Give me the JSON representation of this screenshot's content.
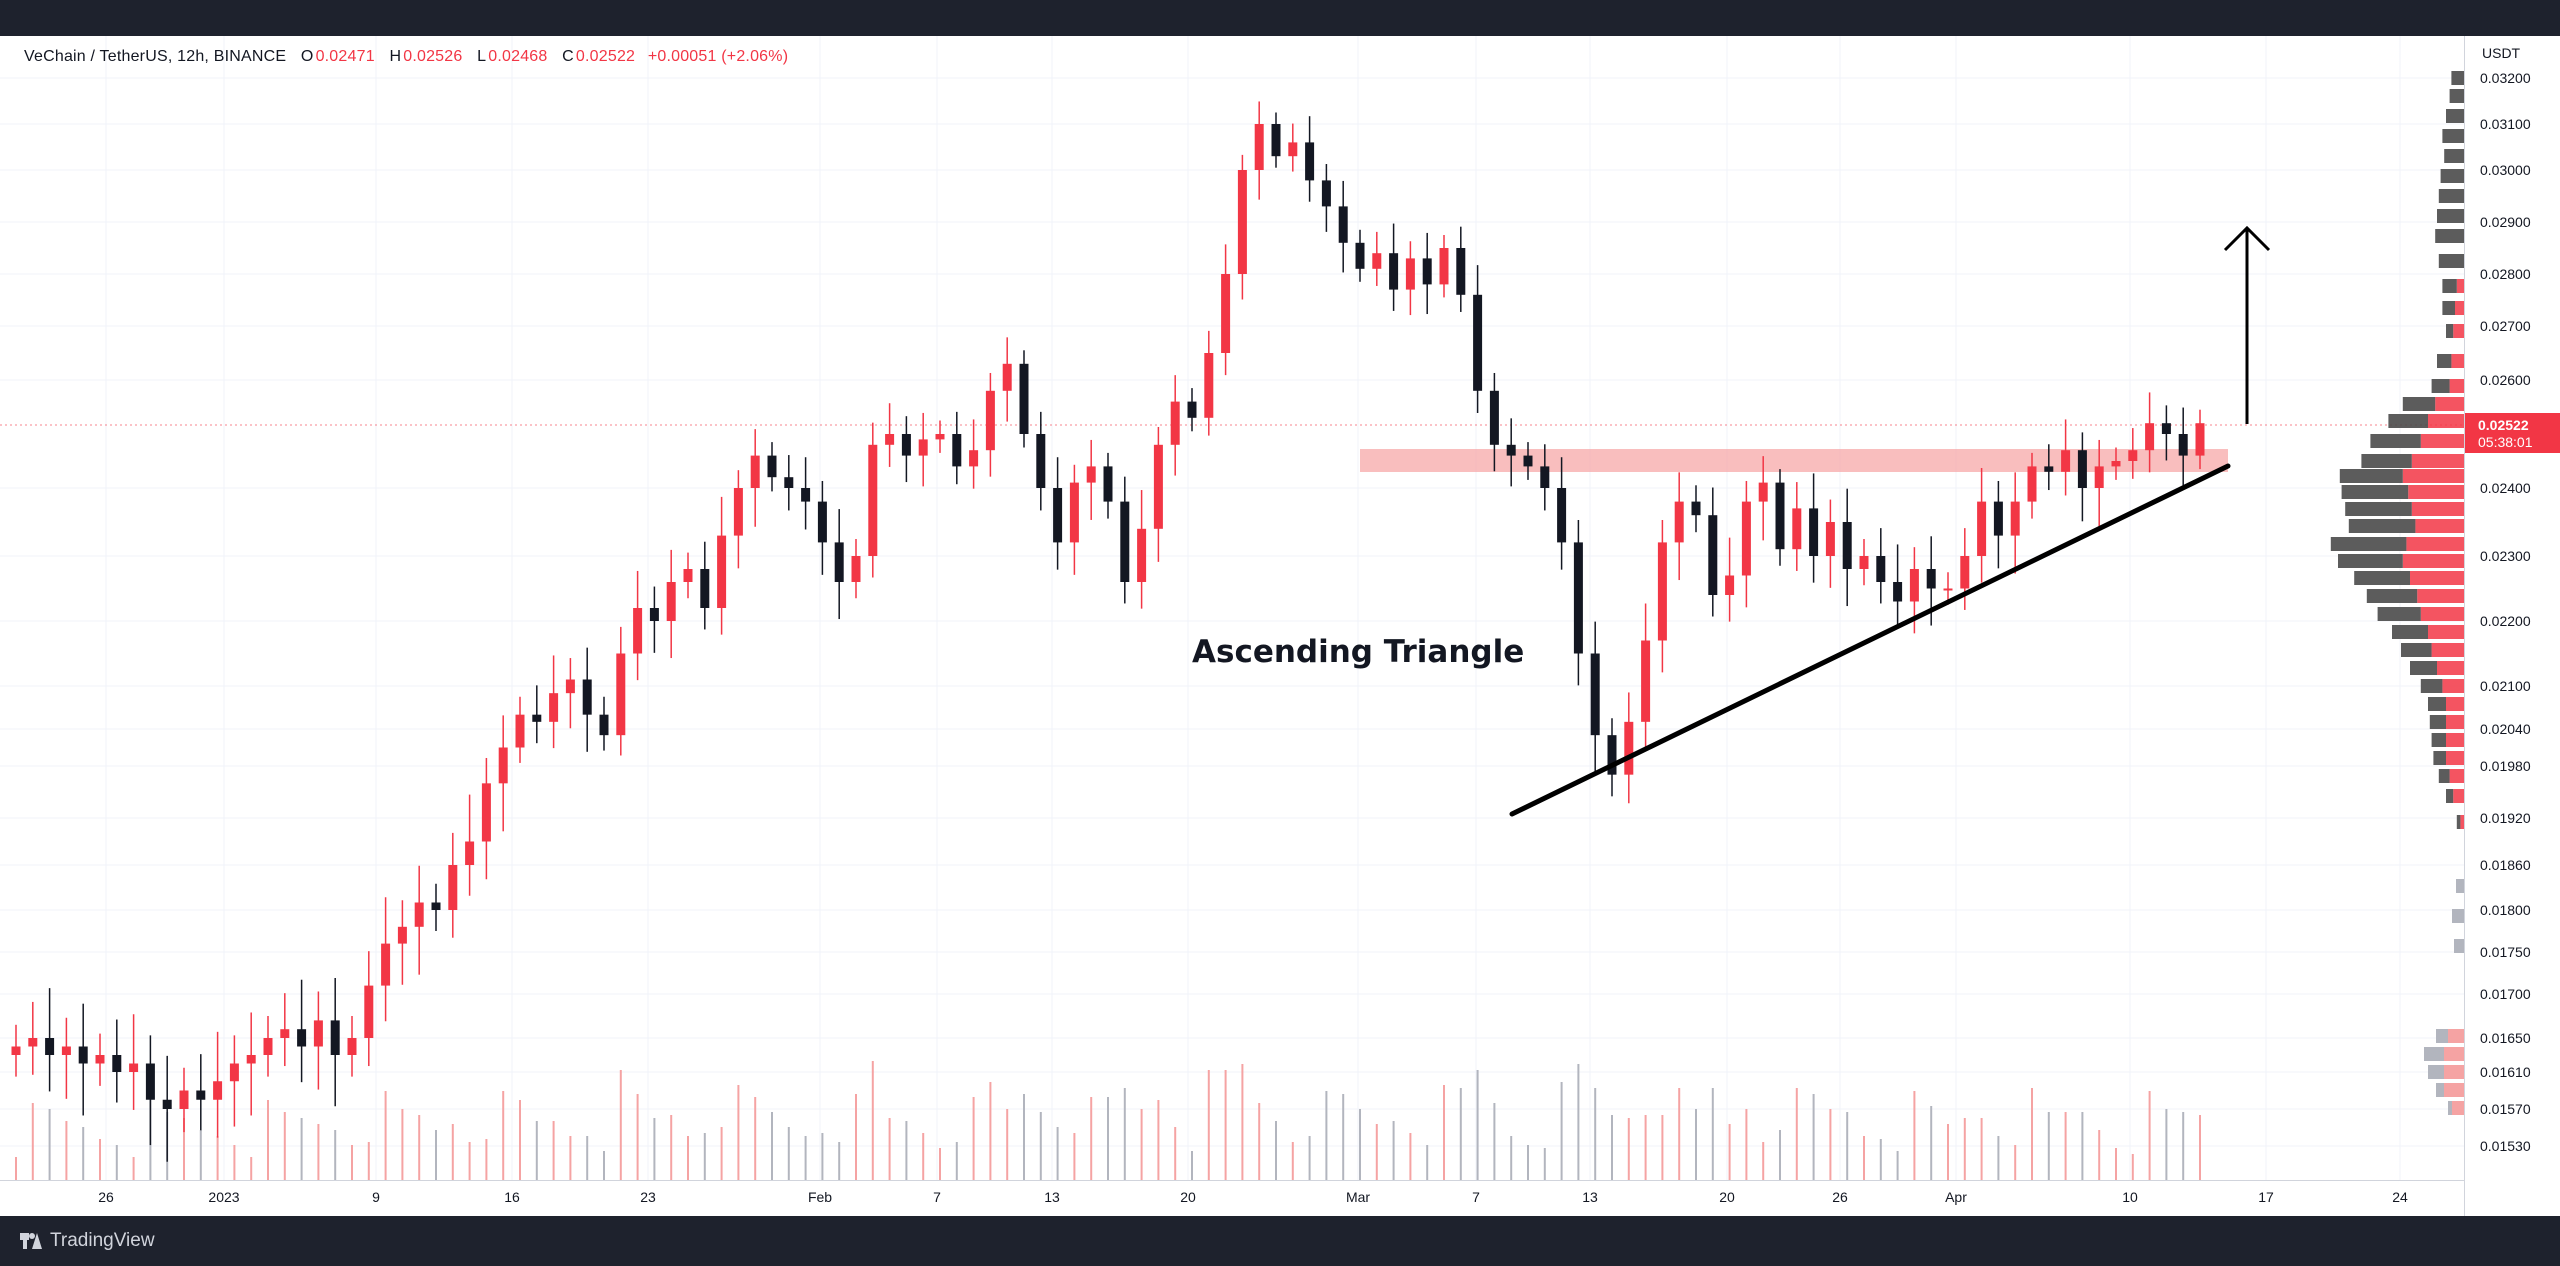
{
  "legend": {
    "symbol": "VeChain / TetherUS, 12h, BINANCE",
    "open_label": "O",
    "open": "0.02471",
    "high_label": "H",
    "high": "0.02526",
    "low_label": "L",
    "low": "0.02468",
    "close_label": "C",
    "close": "0.02522",
    "change": "+0.00051 (+2.06%)"
  },
  "annotation": "Ascending Triangle",
  "price_axis": {
    "currency": "USDT",
    "ticks": [
      "0.03200",
      "0.03100",
      "0.03000",
      "0.02900",
      "0.02800",
      "0.02700",
      "0.02600",
      "0.02400",
      "0.02300",
      "0.02200",
      "0.02100",
      "0.02040",
      "0.01980",
      "0.01920",
      "0.01860",
      "0.01800",
      "0.01750",
      "0.01700",
      "0.01650",
      "0.01610",
      "0.01570",
      "0.01530"
    ],
    "current_price": "0.02522",
    "countdown": "05:38:01"
  },
  "time_axis": {
    "ticks": [
      "26",
      "2023",
      "9",
      "16",
      "23",
      "Feb",
      "7",
      "13",
      "20",
      "Mar",
      "7",
      "13",
      "20",
      "26",
      "Apr",
      "10",
      "17",
      "24"
    ]
  },
  "footer": {
    "brand": "TradingView"
  },
  "colors": {
    "up": "#f23645",
    "down": "#131722",
    "resistance_zone": "#f7a8a8",
    "volume_profile_dark": "#4a4a4a",
    "volume_profile_red": "#f23645"
  },
  "chart_data": {
    "type": "candlestick",
    "interval": "12h",
    "series": [
      {
        "name": "VeChain / TetherUS",
        "close": [
          0.0164,
          0.0165,
          0.0163,
          0.0164,
          0.0162,
          0.0163,
          0.0161,
          0.0162,
          0.0158,
          0.0157,
          0.0159,
          0.0158,
          0.016,
          0.0162,
          0.0163,
          0.0165,
          0.0166,
          0.0164,
          0.0167,
          0.0163,
          0.0165,
          0.0171,
          0.0176,
          0.0178,
          0.0181,
          0.018,
          0.0186,
          0.0189,
          0.0196,
          0.0201,
          0.0206,
          0.0205,
          0.0209,
          0.0211,
          0.0206,
          0.0203,
          0.0215,
          0.0222,
          0.022,
          0.0226,
          0.0228,
          0.0222,
          0.0233,
          0.024,
          0.0246,
          0.0242,
          0.024,
          0.0238,
          0.0232,
          0.0226,
          0.023,
          0.0248,
          0.025,
          0.0246,
          0.0249,
          0.025,
          0.0244,
          0.0247,
          0.0258,
          0.0263,
          0.025,
          0.024,
          0.0232,
          0.0241,
          0.0244,
          0.0238,
          0.0226,
          0.0234,
          0.0248,
          0.0256,
          0.0253,
          0.0265,
          0.028,
          0.03,
          0.031,
          0.0303,
          0.0306,
          0.0298,
          0.0293,
          0.0286,
          0.0281,
          0.0284,
          0.0277,
          0.0283,
          0.0278,
          0.0285,
          0.0276,
          0.0258,
          0.0248,
          0.0246,
          0.0244,
          0.024,
          0.0232,
          0.0215,
          0.0203,
          0.0197,
          0.0205,
          0.0217,
          0.0232,
          0.0238,
          0.0236,
          0.0224,
          0.0227,
          0.0238,
          0.0241,
          0.0231,
          0.0237,
          0.023,
          0.0235,
          0.0228,
          0.023,
          0.0226,
          0.0223,
          0.0228,
          0.0225,
          0.0225,
          0.023,
          0.0238,
          0.0233,
          0.0238,
          0.0244,
          0.0243,
          0.0247,
          0.024,
          0.0244,
          0.0245,
          0.0247,
          0.0252,
          0.025,
          0.0246,
          0.0252
        ]
      }
    ],
    "y_range": [
      0.015,
      0.0327
    ],
    "resistance_zone": [
      0.0245,
      0.025
    ],
    "annotations": [
      "Ascending Triangle",
      "up arrow"
    ],
    "volume_profile": true
  }
}
